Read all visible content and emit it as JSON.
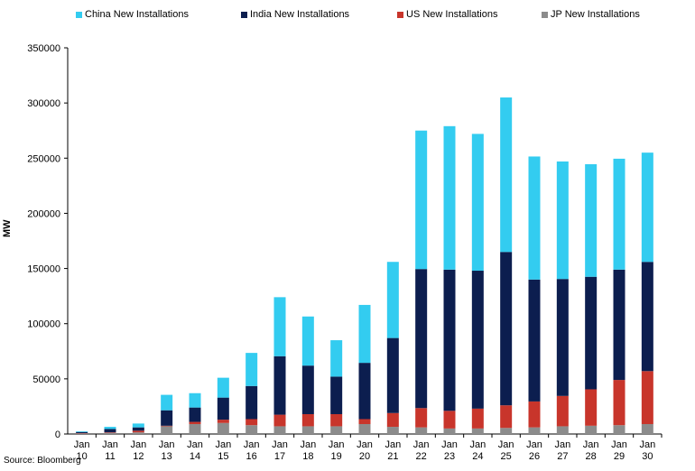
{
  "chart_data": {
    "type": "bar",
    "stacked": true,
    "title": "",
    "xlabel": "",
    "ylabel": "MW",
    "ylim": [
      0,
      350000
    ],
    "yticks": [
      0,
      50000,
      100000,
      150000,
      200000,
      250000,
      300000,
      350000
    ],
    "ytick_labels": [
      "0",
      "50000",
      "100000",
      "150000",
      "200000",
      "250000",
      "300000",
      "350000"
    ],
    "grid": false,
    "legend_position": "top",
    "categories": [
      [
        "Jan",
        "10"
      ],
      [
        "Jan",
        "11"
      ],
      [
        "Jan",
        "12"
      ],
      [
        "Jan",
        "13"
      ],
      [
        "Jan",
        "14"
      ],
      [
        "Jan",
        "15"
      ],
      [
        "Jan",
        "16"
      ],
      [
        "Jan",
        "17"
      ],
      [
        "Jan",
        "18"
      ],
      [
        "Jan",
        "19"
      ],
      [
        "Jan",
        "20"
      ],
      [
        "Jan",
        "21"
      ],
      [
        "Jan",
        "22"
      ],
      [
        "Jan",
        "23"
      ],
      [
        "Jan",
        "24"
      ],
      [
        "Jan",
        "25"
      ],
      [
        "Jan",
        "26"
      ],
      [
        "Jan",
        "27"
      ],
      [
        "Jan",
        "28"
      ],
      [
        "Jan",
        "29"
      ],
      [
        "Jan",
        "30"
      ]
    ],
    "series": [
      {
        "name": "JP New Installations",
        "color": "#8c8c8c",
        "values": [
          500,
          1000,
          1500,
          7000,
          9000,
          10000,
          8000,
          7000,
          7000,
          7000,
          9000,
          6500,
          6000,
          5000,
          5000,
          5500,
          6000,
          7000,
          7500,
          8000,
          9000
        ]
      },
      {
        "name": "US New Installations",
        "color": "#c8352b",
        "values": [
          300,
          500,
          1500,
          500,
          2000,
          3000,
          5500,
          10500,
          11000,
          11000,
          4500,
          12500,
          17500,
          16000,
          18000,
          20500,
          23500,
          27500,
          33000,
          41000,
          48000
        ]
      },
      {
        "name": "India New Installations",
        "color": "#0c1e4f",
        "values": [
          1000,
          3000,
          3000,
          14000,
          13000,
          20000,
          30000,
          53000,
          44000,
          34000,
          51000,
          68000,
          126000,
          128000,
          125000,
          139000,
          110500,
          106000,
          102000,
          100000,
          99000
        ]
      },
      {
        "name": "China New Installations",
        "color": "#33ccf0",
        "values": [
          600,
          2000,
          3500,
          14000,
          13000,
          18000,
          30000,
          53500,
          44500,
          33000,
          52500,
          69000,
          125500,
          130000,
          124000,
          140000,
          111500,
          106500,
          102000,
          100500,
          99000
        ]
      }
    ],
    "legend": [
      {
        "name": "China New Installations",
        "color": "#33ccf0"
      },
      {
        "name": "India New Installations",
        "color": "#0c1e4f"
      },
      {
        "name": "US New Installations",
        "color": "#c8352b"
      },
      {
        "name": "JP New Installations",
        "color": "#8c8c8c"
      }
    ],
    "source": "Source: Bloomberg"
  }
}
